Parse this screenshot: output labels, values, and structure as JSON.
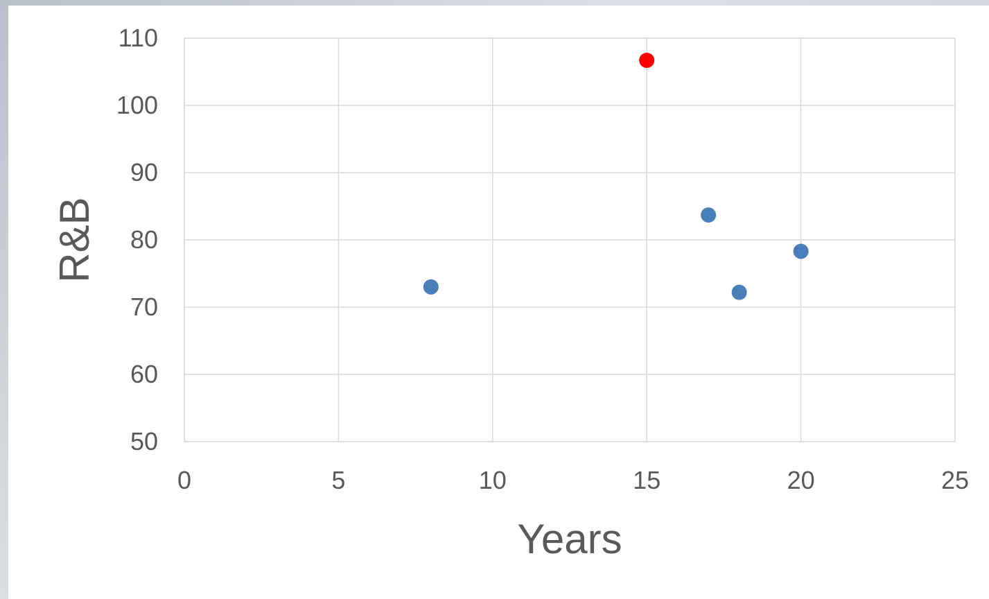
{
  "chart_data": {
    "type": "scatter",
    "xlabel": "Years",
    "ylabel": "R&B",
    "xlim": [
      0,
      25
    ],
    "ylim": [
      50,
      110
    ],
    "x_ticks": [
      "0",
      "5",
      "10",
      "15",
      "20",
      "25"
    ],
    "y_ticks": [
      "50",
      "60",
      "70",
      "80",
      "90",
      "100",
      "110"
    ],
    "grid": true,
    "series": [
      {
        "color": "#4a7ebb",
        "points": [
          {
            "x": 8,
            "y": 73
          },
          {
            "x": 17,
            "y": 83.7
          },
          {
            "x": 18,
            "y": 72.2
          },
          {
            "x": 20,
            "y": 78.3
          }
        ]
      },
      {
        "color": "#ff0000",
        "points": [
          {
            "x": 15,
            "y": 106.7
          }
        ]
      }
    ]
  }
}
